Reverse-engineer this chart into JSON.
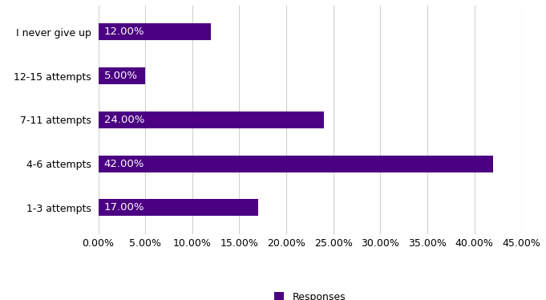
{
  "categories": [
    "1-3 attempts",
    "4-6 attempts",
    "7-11 attempts",
    "12-15 attempts",
    "I never give up"
  ],
  "values": [
    0.17,
    0.42,
    0.24,
    0.05,
    0.12
  ],
  "bar_color": "#4B0082",
  "label_color": "#ffffff",
  "label_fontsize": 9.5,
  "tick_label_fontsize": 9,
  "legend_label": "Responses",
  "xlim": [
    0,
    0.45
  ],
  "xticks": [
    0.0,
    0.05,
    0.1,
    0.15,
    0.2,
    0.25,
    0.3,
    0.35,
    0.4,
    0.45
  ],
  "grid_color": "#d0d0d0",
  "background_color": "#ffffff",
  "bar_height": 0.38
}
